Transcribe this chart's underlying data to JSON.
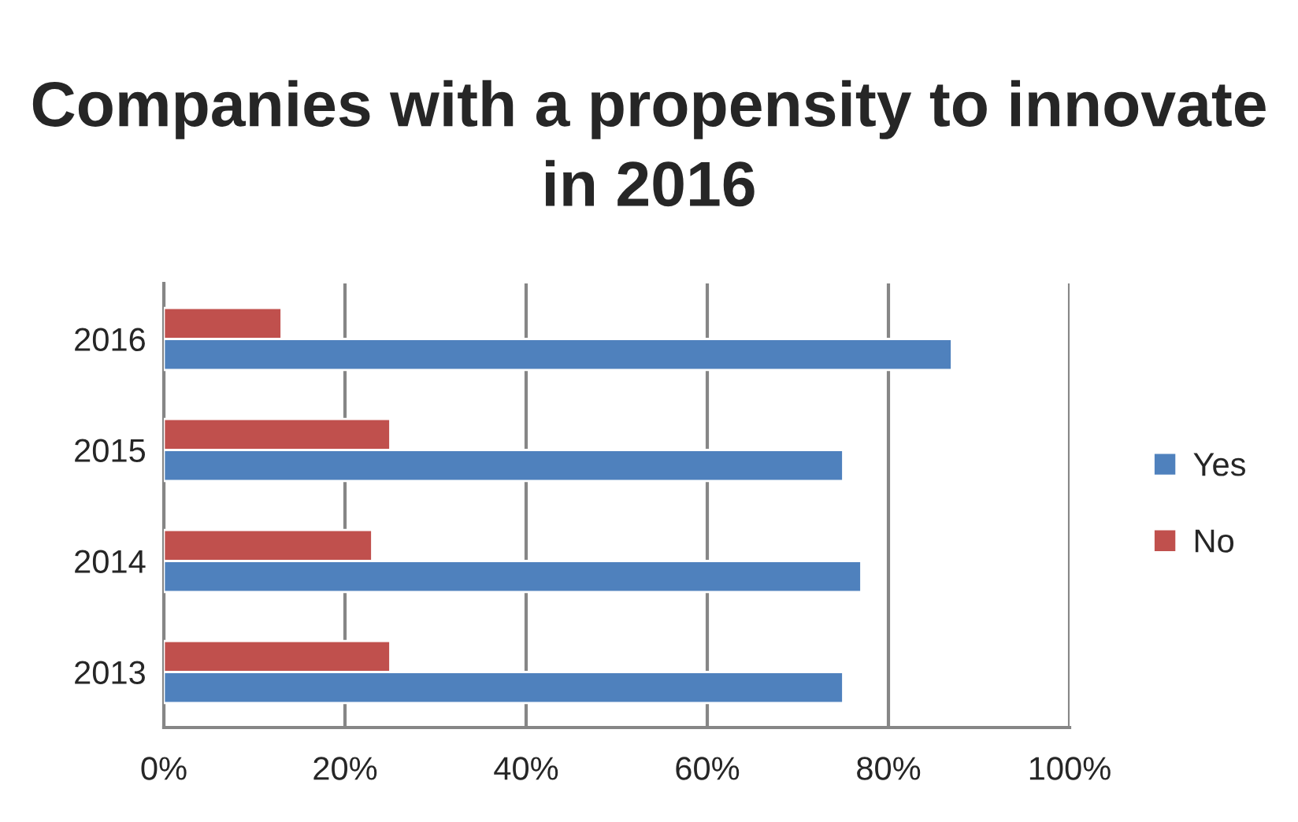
{
  "chart_data": {
    "type": "bar",
    "orientation": "horizontal",
    "title": "Companies with a propensity to innovate in 2016",
    "categories": [
      "2016",
      "2015",
      "2014",
      "2013"
    ],
    "series": [
      {
        "name": "No",
        "color": "#c0504d",
        "values": [
          13,
          25,
          23,
          25
        ]
      },
      {
        "name": "Yes",
        "color": "#4f81bd",
        "values": [
          87,
          75,
          77,
          75
        ]
      }
    ],
    "xlim": [
      0,
      100
    ],
    "xticks": [
      {
        "value": 0,
        "label": "0%"
      },
      {
        "value": 20,
        "label": "20%"
      },
      {
        "value": 40,
        "label": "40%"
      },
      {
        "value": 60,
        "label": "60%"
      },
      {
        "value": 80,
        "label": "80%"
      },
      {
        "value": 100,
        "label": "100%"
      }
    ],
    "grid": "x",
    "legend": "right"
  }
}
